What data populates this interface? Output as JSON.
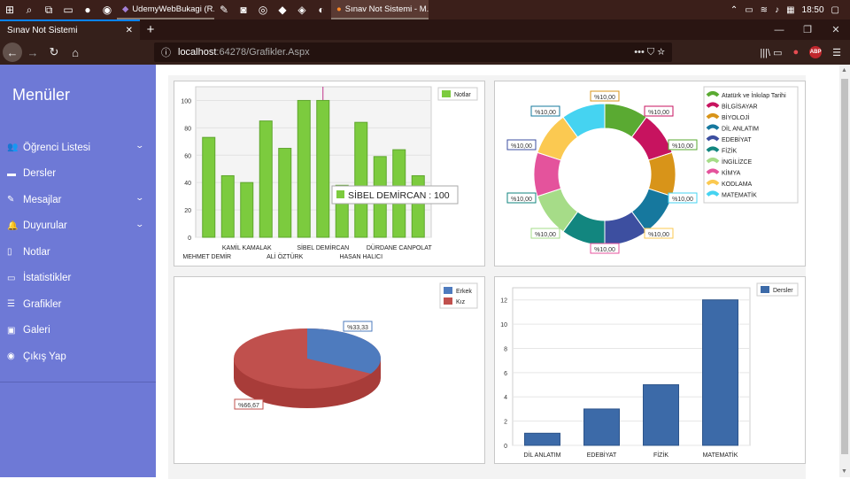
{
  "taskbar": {
    "tasks": [
      {
        "label": "UdemyWebBukagi (R..."
      },
      {
        "label": "Sınav Not Sistemi - M..."
      }
    ],
    "time": "18:50"
  },
  "browser": {
    "tab_title": "Sınav Not Sistemi",
    "url_host": "localhost",
    "url_path": ":64278/Grafikler.Aspx",
    "url_actions": "••• ⛉ ☆",
    "right_icons": "|||\\ ▭",
    "abp": "ABP"
  },
  "sidebar": {
    "title": "Menüler",
    "items": [
      {
        "label": "Öğrenci Listesi",
        "icon": "users-icon",
        "glyph": "👥",
        "chevron": true
      },
      {
        "label": "Dersler",
        "icon": "briefcase-icon",
        "glyph": "▬",
        "chevron": false
      },
      {
        "label": "Mesajlar",
        "icon": "edit-icon",
        "glyph": "✎",
        "chevron": true
      },
      {
        "label": "Duyurular",
        "icon": "bell-icon",
        "glyph": "🔔",
        "chevron": true
      },
      {
        "label": "Notlar",
        "icon": "file-icon",
        "glyph": "▯",
        "chevron": false
      },
      {
        "label": "İstatistikler",
        "icon": "desktop-icon",
        "glyph": "▭",
        "chevron": false
      },
      {
        "label": "Grafikler",
        "icon": "list-icon",
        "glyph": "☰",
        "chevron": false
      },
      {
        "label": "Galeri",
        "icon": "image-icon",
        "glyph": "▣",
        "chevron": false
      },
      {
        "label": "Çıkış Yap",
        "icon": "eye-slash-icon",
        "glyph": "◉",
        "chevron": false
      }
    ]
  },
  "chart_data": [
    {
      "type": "bar",
      "categories": [
        "MEHMET DEMİR",
        "",
        "KAMİL KAMALAK",
        "",
        "ALİ ÖZTÜRK",
        "",
        "SİBEL DEMİRCAN",
        "",
        "HASAN HALICI",
        "",
        "DÜRDANE CANPOLAT",
        ""
      ],
      "series": [
        {
          "name": "Notlar",
          "values": [
            73,
            45,
            40,
            85,
            65,
            100,
            100,
            38,
            84,
            59,
            64,
            45
          ]
        }
      ],
      "ylim": [
        0,
        110
      ],
      "yticks": [
        0,
        20,
        40,
        60,
        80,
        100
      ],
      "tooltip": "SİBEL DEMİRCAN : 100",
      "legend": "top-right",
      "color": "#7ccb3e"
    },
    {
      "type": "pie",
      "categories": [
        "Atatürk ve İnkılap Tarihi",
        "BİLGİSAYAR",
        "BİYOLOJİ",
        "DİL ANLATIM",
        "EDEBİYAT",
        "FİZİK",
        "İNGİLİZCE",
        "KİMYA",
        "KODLAMA",
        "MATEMATİK"
      ],
      "values": [
        10,
        10,
        10,
        10,
        10,
        10,
        10,
        10,
        10,
        10
      ],
      "labels": [
        "%10,00",
        "%10,00",
        "%10,00",
        "%10,00",
        "%10,00",
        "%10,00",
        "%10,00",
        "%10,00",
        "%10,00",
        "%10,00"
      ],
      "colors": [
        "#5aaa32",
        "#c7135f",
        "#d89419",
        "#16789e",
        "#3d4fa0",
        "#12867f",
        "#a6dc88",
        "#e4539c",
        "#fbc951",
        "#45d3f1"
      ],
      "legend": "top-right"
    },
    {
      "type": "pie",
      "categories": [
        "Erkek",
        "Kız"
      ],
      "values": [
        33.33,
        66.67
      ],
      "labels": [
        "%33,33",
        "%66,67"
      ],
      "colors": [
        "#4e7bbe",
        "#c0504d"
      ],
      "legend": "top-right"
    },
    {
      "type": "bar",
      "categories": [
        "DİL ANLATIM",
        "EDEBİYAT",
        "FİZİK",
        "MATEMATİK"
      ],
      "series": [
        {
          "name": "Dersler",
          "values": [
            1,
            3,
            5,
            12
          ]
        }
      ],
      "ylim": [
        0,
        13
      ],
      "yticks": [
        0,
        2,
        4,
        6,
        8,
        10,
        12
      ],
      "legend": "top-right",
      "color": "#3c6aa8"
    }
  ]
}
